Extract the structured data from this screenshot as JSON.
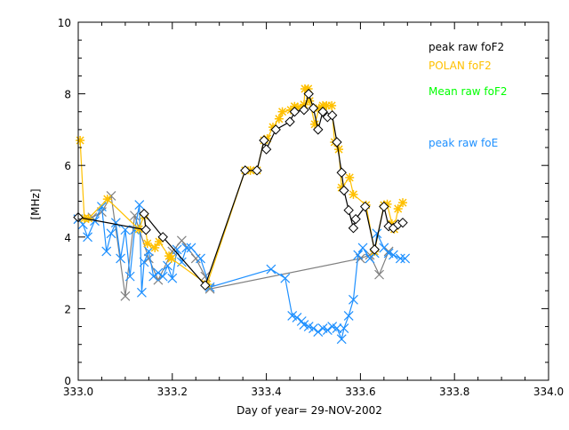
{
  "chart_data": {
    "type": "line",
    "title": "",
    "xlabel": "Day of year= 29-NOV-2002",
    "ylabel": "[MHz]",
    "xlim": [
      333.0,
      334.0
    ],
    "ylim": [
      0,
      10
    ],
    "xticks": [
      "333.0",
      "333.2",
      "333.4",
      "333.6",
      "333.8",
      "334.0"
    ],
    "yticks": [
      "0",
      "2",
      "4",
      "6",
      "8",
      "10"
    ],
    "grid": false,
    "legend_placement": "top-right",
    "series": [
      {
        "name": "peak raw foF2",
        "color": "#000000",
        "marker": "diamond",
        "x": [
          333.0,
          333.144,
          333.14,
          333.18,
          333.27,
          333.355,
          333.38,
          333.395,
          333.4,
          333.42,
          333.45,
          333.46,
          333.48,
          333.49,
          333.5,
          333.51,
          333.52,
          333.53,
          333.54,
          333.55,
          333.56,
          333.565,
          333.575,
          333.585,
          333.59,
          333.61,
          333.63,
          333.65,
          333.66,
          333.67,
          333.68,
          333.69
        ],
        "y": [
          4.55,
          4.2,
          4.65,
          4.0,
          2.65,
          5.86,
          5.86,
          6.7,
          6.45,
          7.0,
          7.22,
          7.5,
          7.55,
          8.0,
          7.6,
          7.0,
          7.5,
          7.35,
          7.4,
          6.65,
          5.8,
          5.3,
          4.75,
          4.25,
          4.5,
          4.85,
          3.65,
          4.85,
          4.3,
          4.25,
          4.35,
          4.4
        ]
      },
      {
        "name": "POLAN foF2",
        "color": "#ffc000",
        "marker": "star",
        "x": [
          333.004,
          333.013,
          333.022,
          333.062,
          333.129,
          333.14,
          333.147,
          333.163,
          333.172,
          333.193,
          333.198,
          333.274,
          333.355,
          333.366,
          333.38,
          333.395,
          333.402,
          333.414,
          333.427,
          333.434,
          333.452,
          333.46,
          333.467,
          333.48,
          333.482,
          333.489,
          333.492,
          333.503,
          333.512,
          333.52,
          333.528,
          333.539,
          333.545,
          333.554,
          333.56,
          333.577,
          333.585,
          333.612,
          333.63,
          333.65,
          333.657,
          333.667,
          333.672,
          333.68,
          333.69
        ],
        "y": [
          6.7,
          4.52,
          4.52,
          5.06,
          4.22,
          4.6,
          3.82,
          3.7,
          3.87,
          3.47,
          3.4,
          2.68,
          5.86,
          5.86,
          5.86,
          6.7,
          6.75,
          7.07,
          7.3,
          7.5,
          7.55,
          7.65,
          7.62,
          7.7,
          8.14,
          8.14,
          7.8,
          7.15,
          7.6,
          7.67,
          7.67,
          7.67,
          6.65,
          6.45,
          5.38,
          5.66,
          5.19,
          4.89,
          3.6,
          4.89,
          4.92,
          4.37,
          4.22,
          4.79,
          4.96
        ]
      },
      {
        "name": "Mean raw foF2",
        "color": "#00ff00",
        "marker": "none",
        "x": [],
        "y": []
      },
      {
        "name": "",
        "color": "#808080",
        "marker": "x",
        "x": [
          333.0,
          333.03,
          333.05,
          333.07,
          333.1,
          333.12,
          333.15,
          333.17,
          333.2,
          333.22,
          333.25,
          333.27,
          333.28,
          333.6,
          333.62,
          333.64,
          333.66
        ],
        "y": [
          4.5,
          4.55,
          4.7,
          5.15,
          2.35,
          4.6,
          3.4,
          2.8,
          3.6,
          3.9,
          3.4,
          2.9,
          2.55,
          3.4,
          3.5,
          2.95,
          3.6
        ]
      },
      {
        "name": "peak raw foE",
        "color": "#1e90ff",
        "marker": "x",
        "x": [
          333.0,
          333.01,
          333.02,
          333.035,
          333.05,
          333.06,
          333.07,
          333.08,
          333.09,
          333.1,
          333.11,
          333.12,
          333.13,
          333.135,
          333.14,
          333.15,
          333.16,
          333.17,
          333.18,
          333.19,
          333.2,
          333.21,
          333.22,
          333.23,
          333.24,
          333.26,
          333.28,
          333.41,
          333.44,
          333.455,
          333.465,
          333.475,
          333.48,
          333.49,
          333.5,
          333.51,
          333.52,
          333.53,
          333.54,
          333.55,
          333.56,
          333.565,
          333.575,
          333.585,
          333.595,
          333.605,
          333.62,
          333.63,
          333.635,
          333.65,
          333.66,
          333.67,
          333.685,
          333.695
        ],
        "y": [
          4.5,
          4.35,
          4.0,
          4.45,
          4.85,
          3.6,
          4.1,
          4.4,
          3.4,
          4.2,
          2.9,
          4.2,
          4.9,
          2.45,
          3.3,
          3.6,
          2.9,
          3.0,
          2.9,
          3.2,
          2.85,
          3.65,
          3.3,
          3.7,
          3.7,
          3.4,
          2.6,
          3.1,
          2.85,
          1.8,
          1.75,
          1.65,
          1.55,
          1.5,
          1.45,
          1.35,
          1.45,
          1.4,
          1.5,
          1.45,
          1.15,
          1.45,
          1.8,
          2.25,
          3.5,
          3.7,
          3.4,
          3.55,
          4.1,
          3.7,
          3.55,
          3.5,
          3.4,
          3.4
        ]
      }
    ]
  }
}
